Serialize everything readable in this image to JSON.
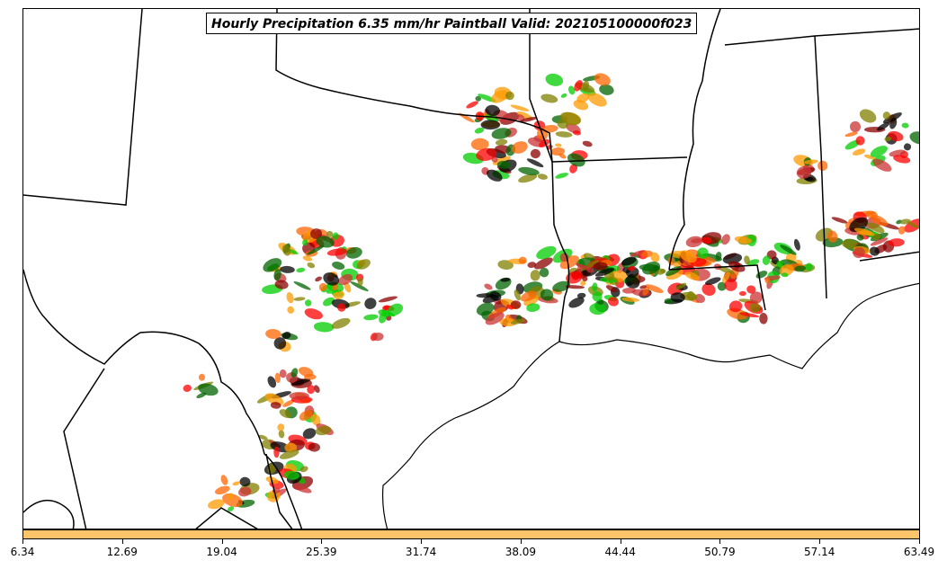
{
  "title": "Hourly Precipitation 6.35 mm/hr Paintball Valid: 202105100000f023",
  "colorbar": {
    "color": "#fdc46a",
    "ticks": [
      "6.34",
      "12.69",
      "19.04",
      "25.39",
      "31.74",
      "38.09",
      "44.44",
      "50.79",
      "57.14",
      "63.49"
    ]
  },
  "member_colors": [
    "#ff0000",
    "#ff6600",
    "#ff9900",
    "#808000",
    "#8b0000",
    "#00cc00",
    "#006400",
    "#000000",
    "#cc3333"
  ]
}
